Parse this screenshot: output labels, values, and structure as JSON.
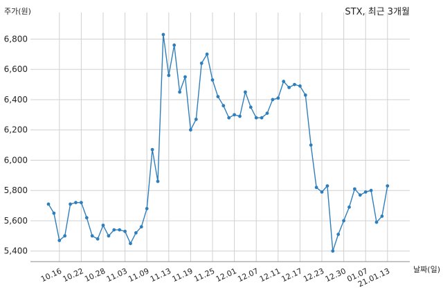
{
  "chart_data": {
    "type": "line",
    "title": "STX, 최근 3개월",
    "ylabel": "주가(원)",
    "xlabel": "날짜(일)",
    "ylim": [
      5330,
      6930
    ],
    "yticks": [
      5400,
      5600,
      5800,
      6000,
      6200,
      6400,
      6600,
      6800
    ],
    "ytick_labels": [
      "5,400",
      "5,600",
      "5,800",
      "6,000",
      "6,200",
      "6,400",
      "6,600",
      "6,800"
    ],
    "grid": true,
    "line_color": "#2e7ebc",
    "xtick_labels": [
      "10.16",
      "10.22",
      "10.28",
      "11.03",
      "11.09",
      "11.13",
      "11.19",
      "11.25",
      "12.01",
      "12.07",
      "12.11",
      "12.17",
      "12.23",
      "12.30",
      "01.07",
      "21.01.13"
    ],
    "xtick_index": [
      2,
      6,
      10,
      14,
      18,
      22,
      26,
      30,
      34,
      38,
      42,
      46,
      50,
      54,
      58,
      62
    ],
    "series": [
      {
        "values": [
          5710,
          5650,
          5470,
          5500,
          5710,
          5720,
          5720,
          5620,
          5500,
          5480,
          5570,
          5500,
          5540,
          5540,
          5530,
          5450,
          5520,
          5560,
          5680,
          6070,
          5860,
          6830,
          6560,
          6760,
          6450,
          6550,
          6200,
          6270,
          6640,
          6700,
          6530,
          6420,
          6360,
          6280,
          6300,
          6290,
          6450,
          6350,
          6280,
          6280,
          6310,
          6400,
          6410,
          6520,
          6480,
          6500,
          6490,
          6430,
          6100,
          5820,
          5790,
          5830,
          5400,
          5510,
          5600,
          5690,
          5810,
          5770,
          5790,
          5800,
          5590,
          5630,
          5830
        ]
      }
    ]
  }
}
